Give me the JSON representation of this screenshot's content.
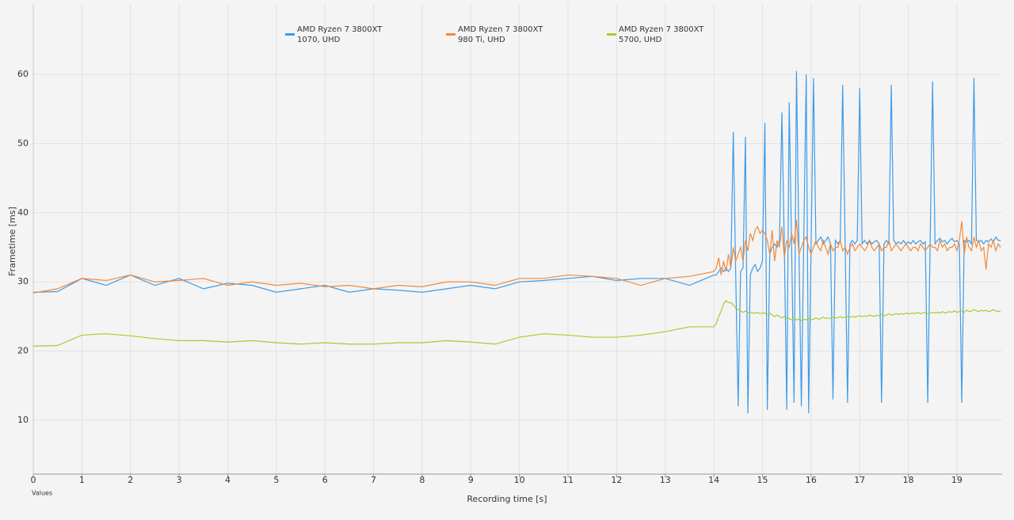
{
  "chart_data": {
    "type": "line",
    "y_label": "Frametime [ms]",
    "x_label": "Recording time [s]",
    "x_sublabel": "Values",
    "xlim": [
      0,
      19.93
    ],
    "ylim": [
      2.2,
      70.2
    ],
    "xticks": [
      0,
      1,
      2,
      3,
      4,
      5,
      6,
      7,
      8,
      9,
      10,
      11,
      12,
      13,
      14,
      15,
      16,
      17,
      18,
      19
    ],
    "yticks": [
      10,
      20,
      30,
      40,
      50,
      60
    ],
    "grid": true,
    "legend": "top",
    "x": [
      0,
      0.5,
      1,
      1.5,
      2,
      2.5,
      3,
      3.5,
      4,
      4.5,
      5,
      5.5,
      6,
      6.5,
      7,
      7.5,
      8,
      8.5,
      9,
      9.5,
      10,
      10.5,
      11,
      11.5,
      12,
      12.5,
      13,
      13.5,
      14,
      14.05,
      14.1,
      14.15,
      14.2,
      14.25,
      14.3,
      14.35,
      14.4,
      14.45,
      14.5,
      14.55,
      14.6,
      14.65,
      14.7,
      14.75,
      14.8,
      14.85,
      14.9,
      14.95,
      15.0,
      15.05,
      15.1,
      15.15,
      15.2,
      15.25,
      15.3,
      15.35,
      15.4,
      15.45,
      15.5,
      15.55,
      15.6,
      15.65,
      15.7,
      15.75,
      15.8,
      15.85,
      15.9,
      15.95,
      16.0,
      16.05,
      16.1,
      16.15,
      16.2,
      16.25,
      16.3,
      16.35,
      16.4,
      16.45,
      16.5,
      16.55,
      16.6,
      16.65,
      16.7,
      16.75,
      16.8,
      16.85,
      16.9,
      16.95,
      17.0,
      17.05,
      17.1,
      17.15,
      17.2,
      17.25,
      17.3,
      17.35,
      17.4,
      17.45,
      17.5,
      17.55,
      17.6,
      17.65,
      17.7,
      17.75,
      17.8,
      17.85,
      17.9,
      17.95,
      18.0,
      18.05,
      18.1,
      18.15,
      18.2,
      18.25,
      18.3,
      18.35,
      18.4,
      18.45,
      18.5,
      18.55,
      18.6,
      18.65,
      18.7,
      18.75,
      18.8,
      18.85,
      18.9,
      18.95,
      19.0,
      19.05,
      19.1,
      19.15,
      19.2,
      19.25,
      19.3,
      19.35,
      19.4,
      19.45,
      19.5,
      19.55,
      19.6,
      19.65,
      19.7,
      19.75,
      19.8,
      19.85,
      19.9
    ],
    "series": [
      {
        "name": "AMD Ryzen 7 3800XT\n1070, UHD",
        "color": "#3d9be9",
        "values": [
          28.5,
          28.6,
          30.5,
          29.5,
          31,
          29.5,
          30.5,
          29,
          29.8,
          29.5,
          28.5,
          29,
          29.5,
          28.5,
          29,
          28.8,
          28.5,
          29,
          29.5,
          29,
          30,
          30.2,
          30.5,
          30.8,
          30.2,
          30.5,
          30.5,
          29.5,
          31,
          31,
          31.5,
          32,
          31.5,
          32,
          31.5,
          32,
          51.7,
          31,
          12,
          31.5,
          32,
          51,
          11,
          31,
          32,
          32.5,
          31.5,
          32,
          33,
          53,
          11.5,
          34,
          35,
          35.5,
          35,
          36,
          54.5,
          35,
          11.5,
          56,
          35,
          12.5,
          60.5,
          35,
          12,
          36,
          60,
          11,
          35,
          59.5,
          35.5,
          36,
          36.5,
          35.5,
          36,
          36.5,
          35.5,
          13,
          36,
          35.5,
          36,
          58.5,
          36,
          12.5,
          35.5,
          36,
          35.5,
          36,
          58,
          35.5,
          36,
          35.5,
          36,
          35.5,
          35.8,
          36,
          35.5,
          12.5,
          35.5,
          36,
          35.5,
          58.5,
          36,
          35.5,
          35.8,
          35.5,
          36,
          35.5,
          35.8,
          35.5,
          36,
          35.5,
          35.8,
          36,
          35.5,
          35.8,
          12.5,
          36,
          59,
          35.5,
          36,
          36.3,
          35.8,
          36,
          35.5,
          36,
          36.3,
          35.8,
          36,
          35.5,
          12.5,
          36,
          35.8,
          36,
          35.5,
          59.5,
          36,
          35.8,
          36,
          35.5,
          36,
          35.8,
          36.2,
          35.8,
          36.5,
          36,
          36
        ]
      },
      {
        "name": "AMD Ryzen 7 3800XT\n980 Ti, UHD",
        "color": "#f08a3c",
        "values": [
          28.4,
          29,
          30.5,
          30.2,
          31,
          30,
          30.2,
          30.5,
          29.5,
          30,
          29.5,
          29.8,
          29.3,
          29.5,
          29,
          29.5,
          29.3,
          30,
          30,
          29.5,
          30.5,
          30.5,
          31,
          30.8,
          30.5,
          29.5,
          30.5,
          30.8,
          31.5,
          32,
          33.5,
          31,
          33,
          31.5,
          34,
          32,
          35,
          33,
          34,
          35,
          33,
          36,
          34.5,
          37,
          36,
          37.5,
          38,
          37,
          37.5,
          37,
          36,
          34,
          37.5,
          33,
          36,
          35,
          38,
          33.5,
          36,
          35,
          37,
          35.5,
          39,
          34,
          35,
          36,
          36.5,
          35,
          34,
          35,
          36,
          35,
          34.5,
          36,
          35,
          34,
          35.5,
          34.5,
          35,
          35,
          36,
          34.5,
          35,
          34,
          35,
          35.5,
          34.5,
          35,
          35.5,
          35,
          34.5,
          35,
          36,
          35,
          34.5,
          35,
          35.5,
          34.5,
          35,
          35,
          36,
          34.5,
          35,
          35.5,
          35,
          34.5,
          35,
          35.5,
          35,
          34.5,
          35,
          35,
          34.5,
          35.5,
          35,
          34.5,
          35,
          35.5,
          35,
          35,
          34.5,
          36,
          35,
          35.5,
          34.5,
          35,
          35,
          35.5,
          34.5,
          36,
          38.8,
          34,
          36.5,
          35,
          34.5,
          36.5,
          35,
          36,
          34.5,
          35,
          31.8,
          35.5,
          35,
          36,
          34.5,
          35.5,
          35
        ]
      },
      {
        "name": "AMD Ryzen 7 3800XT\n5700, UHD",
        "color": "#a6cc2e",
        "values": [
          20.7,
          20.8,
          22.3,
          22.5,
          22.2,
          21.8,
          21.5,
          21.5,
          21.3,
          21.5,
          21.2,
          21,
          21.2,
          21,
          21,
          21.2,
          21.2,
          21.5,
          21.3,
          21,
          22,
          22.5,
          22.3,
          22,
          22,
          22.3,
          22.8,
          23.5,
          23.5,
          24,
          25,
          25.8,
          26.8,
          27.3,
          27,
          27,
          26.7,
          26.2,
          26,
          25.8,
          25.6,
          25.8,
          25.5,
          25.6,
          25.5,
          25.5,
          25.6,
          25.4,
          25.5,
          25.5,
          25.3,
          25.5,
          25.2,
          25,
          25.2,
          25,
          24.8,
          25,
          24.7,
          24.7,
          24.5,
          24.7,
          24.5,
          24.6,
          24.4,
          24.6,
          24.5,
          24.7,
          24.5,
          24.6,
          24.8,
          24.6,
          24.7,
          24.9,
          24.7,
          24.8,
          24.7,
          24.9,
          24.8,
          24.8,
          25,
          24.8,
          24.9,
          25,
          24.9,
          25,
          24.9,
          25,
          25.1,
          25,
          25.1,
          25,
          25.2,
          25.1,
          25,
          25.2,
          25.1,
          25.3,
          25.1,
          25.2,
          25.4,
          25.2,
          25.3,
          25.4,
          25.3,
          25.4,
          25.3,
          25.5,
          25.4,
          25.4,
          25.5,
          25.4,
          25.6,
          25.4,
          25.5,
          25.6,
          25.4,
          25.5,
          25.6,
          25.5,
          25.6,
          25.5,
          25.7,
          25.5,
          25.6,
          25.7,
          25.6,
          25.8,
          25.6,
          25.7,
          25.8,
          25.6,
          25.9,
          25.7,
          25.8,
          26,
          25.8,
          25.7,
          25.9,
          25.8,
          25.9,
          25.7,
          25.8,
          26,
          25.8,
          25.7,
          25.8
        ]
      }
    ]
  }
}
